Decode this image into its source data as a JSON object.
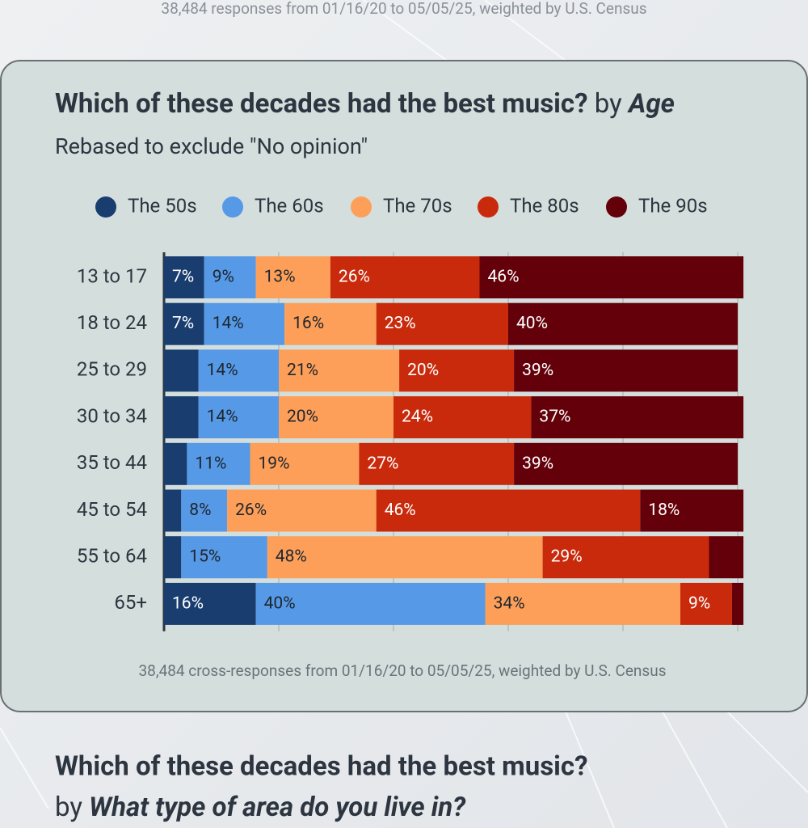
{
  "header": {
    "note": "38,484 responses from 01/16/20 to 05/05/25, weighted by U.S. Census"
  },
  "chart_data": {
    "type": "bar",
    "orientation": "horizontal",
    "stacked": true,
    "title": "Which of these decades had the best music?",
    "title_by": "by",
    "title_group": "Age",
    "subtitle": "Rebased to exclude \"No opinion\"",
    "categories": [
      "13 to 17",
      "18 to 24",
      "25 to 29",
      "30 to 34",
      "35 to 44",
      "45 to 54",
      "55 to 64",
      "65+"
    ],
    "series": [
      {
        "name": "The 50s",
        "color": "#183d6e",
        "values": [
          7,
          7,
          6,
          6,
          4,
          3,
          3,
          16
        ],
        "value_labels": [
          "7%",
          "7%",
          null,
          null,
          null,
          null,
          null,
          "16%"
        ]
      },
      {
        "name": "The 60s",
        "color": "#5699e6",
        "values": [
          9,
          14,
          14,
          14,
          11,
          8,
          15,
          40
        ],
        "value_labels": [
          "9%",
          "14%",
          "14%",
          "14%",
          "11%",
          "8%",
          "15%",
          "40%"
        ]
      },
      {
        "name": "The 70s",
        "color": "#fd9f59",
        "values": [
          13,
          16,
          21,
          20,
          19,
          26,
          48,
          34
        ],
        "value_labels": [
          "13%",
          "16%",
          "21%",
          "20%",
          "19%",
          "26%",
          "48%",
          "34%"
        ]
      },
      {
        "name": "The 80s",
        "color": "#c92a0c",
        "values": [
          26,
          23,
          20,
          24,
          27,
          46,
          29,
          9
        ],
        "value_labels": [
          "26%",
          "23%",
          "20%",
          "24%",
          "27%",
          "46%",
          "29%",
          "9%"
        ]
      },
      {
        "name": "The 90s",
        "color": "#63000a",
        "values": [
          46,
          40,
          39,
          37,
          39,
          18,
          6,
          2
        ],
        "value_labels": [
          "46%",
          "40%",
          "39%",
          "37%",
          "39%",
          "18%",
          null,
          null
        ]
      }
    ],
    "xlim": [
      0,
      100
    ],
    "xticks": [
      0,
      20,
      40,
      60,
      80,
      100
    ],
    "grid": true,
    "legend": "top",
    "footnote": "38,484 cross-responses from 01/16/20 to 05/05/25, weighted by U.S. Census"
  },
  "next_section": {
    "title": "Which of these decades had the best music?",
    "by": "by",
    "group": "What type of area do you live in?"
  }
}
